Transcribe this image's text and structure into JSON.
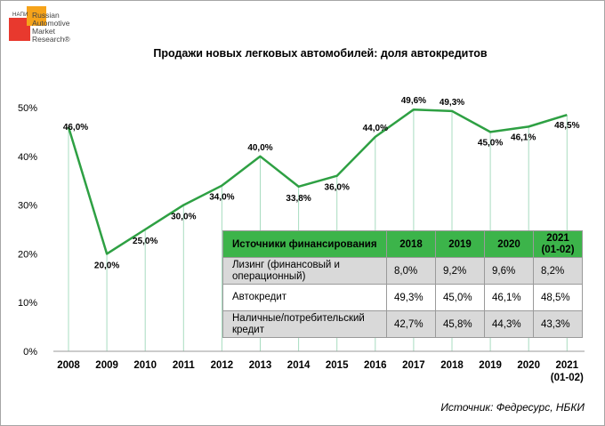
{
  "logo": {
    "tag": "НАПИ",
    "text": "Russian\nAutomotive\nMarket\nResearch®"
  },
  "chart_data": {
    "type": "line",
    "title": "Продажи новых легковых автомобилей: доля автокредитов",
    "categories": [
      "2008",
      "2009",
      "2010",
      "2011",
      "2012",
      "2013",
      "2014",
      "2015",
      "2016",
      "2017",
      "2018",
      "2019",
      "2020",
      "2021"
    ],
    "x_sublabel_last": "(01-02)",
    "values": [
      46.0,
      20.0,
      25.0,
      30.0,
      34.0,
      40.0,
      33.8,
      36.0,
      44.0,
      49.6,
      49.3,
      45.0,
      46.1,
      48.5
    ],
    "data_labels": [
      "46,0%",
      "20,0%",
      "25,0%",
      "30,0%",
      "34,0%",
      "40,0%",
      "33,8%",
      "36,0%",
      "44,0%",
      "49,6%",
      "49,3%",
      "45,0%",
      "46,1%",
      "48,5%"
    ],
    "yticks": [
      "0%",
      "10%",
      "20%",
      "30%",
      "40%",
      "50%"
    ],
    "ylim": [
      0,
      50
    ],
    "line_color": "#2ea043",
    "droplines": true
  },
  "table": {
    "header": {
      "label": "Источники финансирования",
      "years": [
        "2018",
        "2019",
        "2020",
        "2021\n(01-02)"
      ]
    },
    "rows": [
      {
        "label": "Лизинг (финансовый и операционный)",
        "values": [
          "8,0%",
          "9,2%",
          "9,6%",
          "8,2%"
        ]
      },
      {
        "label": "Автокредит",
        "values": [
          "49,3%",
          "45,0%",
          "46,1%",
          "48,5%"
        ]
      },
      {
        "label": "Наличные/потребительский кредит",
        "values": [
          "42,7%",
          "45,8%",
          "44,3%",
          "43,3%"
        ]
      }
    ]
  },
  "source": "Источник: Федресурс, НБКИ"
}
